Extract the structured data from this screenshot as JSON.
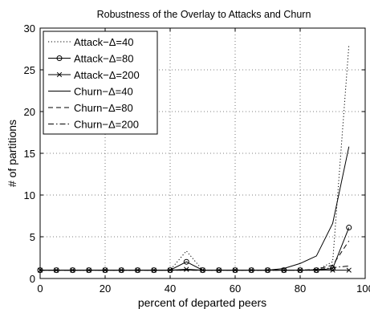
{
  "chart_data": {
    "type": "line",
    "title": "Robustness of the Overlay to Attacks and Churn",
    "xlabel": "percent of departed peers",
    "ylabel": "# of partitions",
    "xlim": [
      0,
      100
    ],
    "ylim": [
      0,
      30
    ],
    "xticks": [
      "0",
      "20",
      "40",
      "60",
      "80",
      "100"
    ],
    "yticks": [
      "0",
      "5",
      "10",
      "15",
      "20",
      "25",
      "30"
    ],
    "grid": true,
    "legend_position": "top-left",
    "x": [
      0,
      5,
      10,
      15,
      20,
      25,
      30,
      35,
      40,
      45,
      50,
      55,
      60,
      65,
      70,
      75,
      80,
      85,
      90,
      95
    ],
    "series": [
      {
        "name": "Attack−Δ=40",
        "style": "dotted",
        "marker": "none",
        "values": [
          1,
          1,
          1,
          1,
          1,
          1,
          1,
          1,
          1,
          3.3,
          1,
          1,
          1,
          1,
          1,
          1,
          1,
          1,
          2,
          28
        ]
      },
      {
        "name": "Attack−Δ=80",
        "style": "solid",
        "marker": "circle",
        "values": [
          1,
          1,
          1,
          1,
          1,
          1,
          1,
          1,
          1,
          2,
          1,
          1,
          1,
          1,
          1,
          1,
          1,
          1,
          1.2,
          6.1
        ]
      },
      {
        "name": "Attack−Δ=200",
        "style": "solid",
        "marker": "x",
        "values": [
          1,
          1,
          1,
          1,
          1,
          1,
          1,
          1,
          1,
          1.1,
          1,
          1,
          1,
          1,
          1,
          1,
          1,
          1,
          1,
          1
        ]
      },
      {
        "name": "Churn−Δ=40",
        "style": "solid",
        "marker": "none",
        "values": [
          1,
          1,
          1,
          1,
          1,
          1,
          1,
          1,
          1,
          1,
          1,
          1,
          1,
          1,
          1,
          1.2,
          1.8,
          2.7,
          6.6,
          15.8
        ]
      },
      {
        "name": "Churn−Δ=80",
        "style": "dashed",
        "marker": "none",
        "values": [
          1,
          1,
          1,
          1,
          1,
          1,
          1,
          1,
          1,
          1,
          1,
          1,
          1,
          1,
          1,
          1,
          1,
          1.1,
          1.6,
          4.5
        ]
      },
      {
        "name": "Churn−Δ=200",
        "style": "dashdot",
        "marker": "none",
        "values": [
          1,
          1,
          1,
          1,
          1,
          1,
          1,
          1,
          1,
          1,
          1,
          1,
          1,
          1,
          1,
          1,
          1,
          1.05,
          1.3,
          1.5
        ]
      }
    ]
  }
}
